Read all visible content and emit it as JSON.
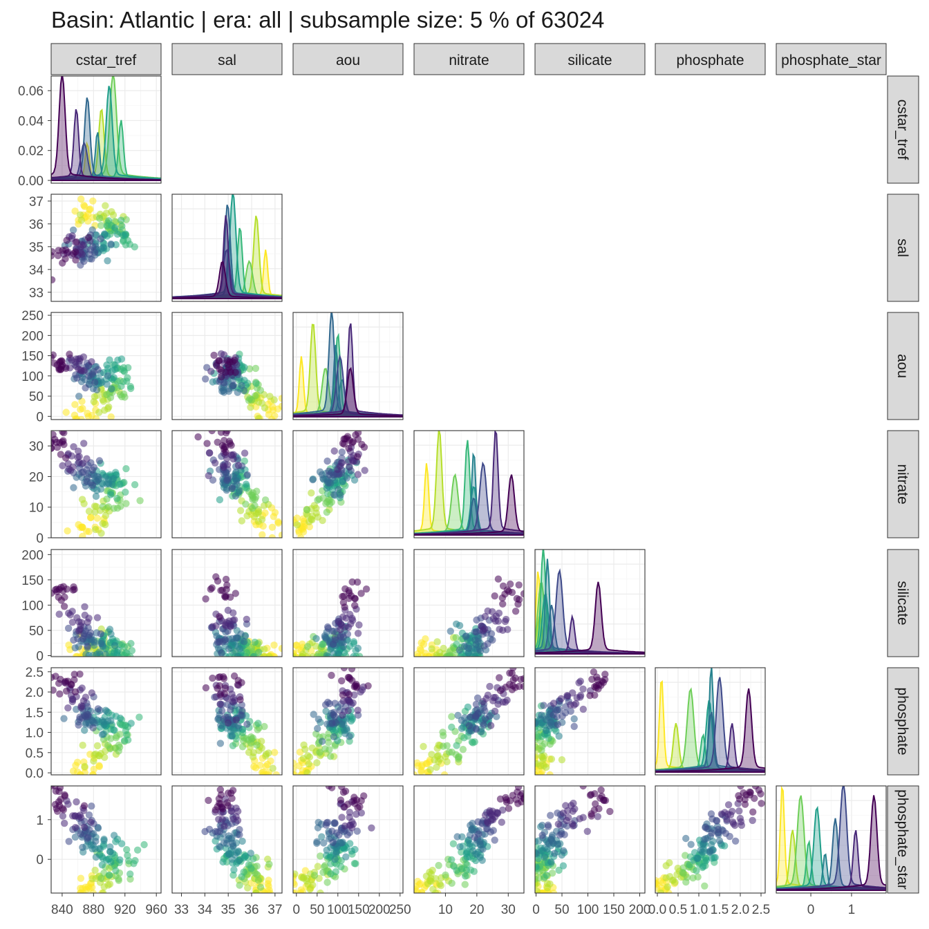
{
  "title": "Basin: Atlantic | era: all | subsample size: 5 % of 63024",
  "chart_data": {
    "type": "scatter-matrix",
    "title": "Basin: Atlantic | era: all | subsample size: 5 % of 63024",
    "variables": [
      "cstar_tref",
      "sal",
      "aou",
      "nitrate",
      "silicate",
      "phosphate",
      "phosphate_star"
    ],
    "column_strip_labels": [
      "cstar_tref",
      "sal",
      "aou",
      "nitrate",
      "silicate",
      "phosphate",
      "phosphate_star"
    ],
    "row_strip_labels": [
      "cstar_tref",
      "sal",
      "aou",
      "nitrate",
      "silicate",
      "phosphate",
      "phosphate_star"
    ],
    "axes": {
      "cstar_tref": {
        "range": [
          826,
          966
        ],
        "ticks": [
          840,
          880,
          920,
          960
        ],
        "tick_labels": [
          "840",
          "880",
          "920",
          "960"
        ]
      },
      "sal": {
        "range": [
          32.6,
          37.3
        ],
        "ticks": [
          33,
          34,
          35,
          36,
          37
        ],
        "tick_labels": [
          "33",
          "34",
          "35",
          "36",
          "37"
        ]
      },
      "aou": {
        "range": [
          -8,
          257
        ],
        "ticks": [
          0,
          50,
          100,
          150,
          200,
          250
        ],
        "tick_labels": [
          "0",
          "50",
          "100",
          "150",
          "200",
          "250"
        ]
      },
      "nitrate": {
        "range": [
          0,
          35
        ],
        "ticks": [
          0,
          10,
          20,
          30
        ],
        "tick_labels": [
          "0",
          "10",
          "20",
          "30"
        ]
      },
      "silicate": {
        "range": [
          -2,
          210
        ],
        "ticks": [
          0,
          50,
          100,
          150,
          200
        ],
        "tick_labels": [
          "0",
          "50",
          "100",
          "150",
          "200"
        ]
      },
      "phosphate": {
        "range": [
          -0.05,
          2.6
        ],
        "ticks": [
          0,
          0.5,
          1,
          1.5,
          2,
          2.5
        ],
        "tick_labels": [
          "0.0",
          "0.5",
          "1.0",
          "1.5",
          "2.0",
          "2.5"
        ]
      },
      "phosphate_star": {
        "range": [
          -0.85,
          1.85
        ],
        "ticks": [
          0,
          1
        ],
        "tick_labels": [
          "0",
          "1"
        ]
      }
    },
    "x_tick_labels_bottom": [
      [
        "840",
        "880",
        "920",
        "960"
      ],
      [
        "33",
        "34",
        "35",
        "36",
        "37"
      ],
      [
        "0",
        "50",
        "100",
        "150",
        "200",
        "250"
      ],
      [
        "10",
        "20",
        "30"
      ],
      [
        "0",
        "50",
        "100",
        "150",
        "200"
      ],
      [
        "0.0",
        "0.5",
        "1.0",
        "1.5",
        "2.0",
        "2.5"
      ],
      [
        "0",
        "1"
      ]
    ],
    "y_tick_labels_left": [
      [
        "0.00",
        "0.02",
        "0.04",
        "0.06"
      ],
      [
        "33",
        "34",
        "35",
        "36",
        "37"
      ],
      [
        "0",
        "50",
        "100",
        "150",
        "200",
        "250"
      ],
      [
        "0",
        "10",
        "20",
        "30"
      ],
      [
        "0",
        "50",
        "100",
        "150",
        "200"
      ],
      [
        "0.0",
        "0.5",
        "1.0",
        "1.5",
        "2.0",
        "2.5"
      ],
      [
        "0",
        "1"
      ]
    ],
    "first_density_yrange": [
      0,
      0.067
    ],
    "color_scale": "viridis (yellow = shallow/warm water, purple = deep water)",
    "water_mass_groups": [
      {
        "color": "#fde725",
        "cstar_tref": 872,
        "sal": 36.6,
        "aou": 12,
        "nitrate": 4,
        "silicate": 4,
        "phosphate": 0.1,
        "phosphate_star": -0.7
      },
      {
        "color": "#b5de2b",
        "cstar_tref": 890,
        "sal": 36.2,
        "aou": 40,
        "nitrate": 8,
        "silicate": 7,
        "phosphate": 0.45,
        "phosphate_star": -0.45
      },
      {
        "color": "#6ece58",
        "cstar_tref": 905,
        "sal": 35.9,
        "aou": 70,
        "nitrate": 13,
        "silicate": 10,
        "phosphate": 0.8,
        "phosphate_star": -0.25
      },
      {
        "color": "#35b779",
        "cstar_tref": 915,
        "sal": 35.5,
        "aou": 100,
        "nitrate": 17,
        "silicate": 14,
        "phosphate": 1.1,
        "phosphate_star": -0.05
      },
      {
        "color": "#1f9e89",
        "cstar_tref": 900,
        "sal": 35.2,
        "aou": 110,
        "nitrate": 19,
        "silicate": 18,
        "phosphate": 1.25,
        "phosphate_star": 0.15
      },
      {
        "color": "#26828e",
        "cstar_tref": 885,
        "sal": 35.05,
        "aou": 95,
        "nitrate": 19,
        "silicate": 22,
        "phosphate": 1.3,
        "phosphate_star": 0.35
      },
      {
        "color": "#31688e",
        "cstar_tref": 872,
        "sal": 34.97,
        "aou": 85,
        "nitrate": 19,
        "silicate": 30,
        "phosphate": 1.3,
        "phosphate_star": 0.6
      },
      {
        "color": "#3e4989",
        "cstar_tref": 868,
        "sal": 34.93,
        "aou": 105,
        "nitrate": 22,
        "silicate": 45,
        "phosphate": 1.5,
        "phosphate_star": 0.8
      },
      {
        "color": "#482878",
        "cstar_tref": 858,
        "sal": 34.9,
        "aou": 130,
        "nitrate": 26,
        "silicate": 70,
        "phosphate": 1.8,
        "phosphate_star": 1.1
      },
      {
        "color": "#440154",
        "cstar_tref": 840,
        "sal": 34.75,
        "aou": 130,
        "nitrate": 31,
        "silicate": 120,
        "phosphate": 2.2,
        "phosphate_star": 1.55
      }
    ]
  }
}
